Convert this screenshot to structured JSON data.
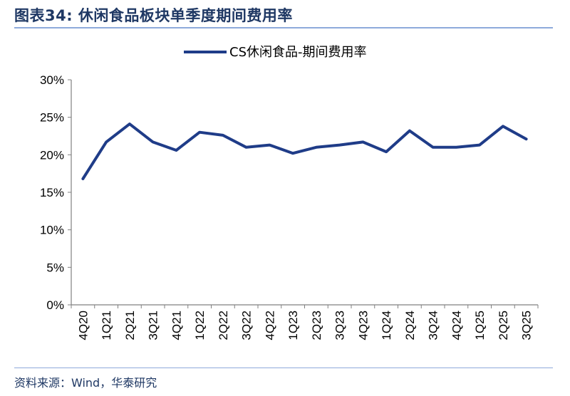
{
  "header": {
    "title": "图表34:  休闲食品板块单季度期间费用率"
  },
  "footer": {
    "source": "资料来源：Wind，华泰研究"
  },
  "chart_data": {
    "type": "line",
    "categories": [
      "4Q20",
      "1Q21",
      "2Q21",
      "3Q21",
      "4Q21",
      "1Q22",
      "2Q22",
      "3Q22",
      "4Q22",
      "1Q23",
      "2Q23",
      "3Q23",
      "4Q23",
      "1Q24",
      "2Q24",
      "3Q24",
      "4Q24",
      "1Q25",
      "2Q25",
      "3Q25"
    ],
    "series": [
      {
        "name": "CS休闲食品-期间费用率",
        "values": [
          16.8,
          21.7,
          24.1,
          21.7,
          20.6,
          23.0,
          22.6,
          21.0,
          21.3,
          20.2,
          21.0,
          21.3,
          21.7,
          20.4,
          23.2,
          21.0,
          21.0,
          21.3,
          23.8,
          22.1
        ],
        "color": "#1f3c88"
      }
    ],
    "ylim": [
      0,
      30
    ],
    "yticks": [
      "0%",
      "5%",
      "10%",
      "15%",
      "20%",
      "25%",
      "30%"
    ],
    "legend_position": "top",
    "grid": false
  }
}
